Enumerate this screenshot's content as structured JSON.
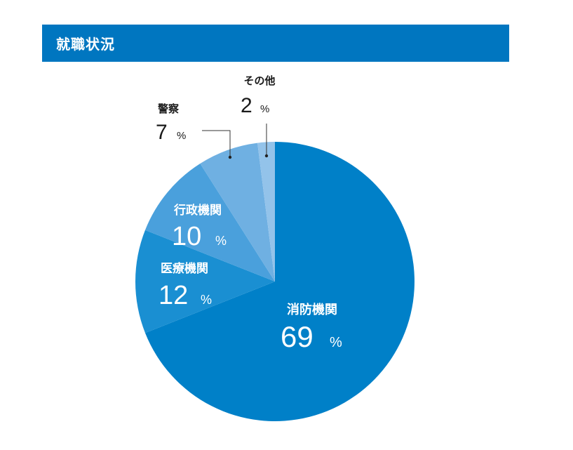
{
  "header": {
    "title": "就職状況"
  },
  "chart_data": {
    "type": "pie",
    "slices": [
      {
        "label": "消防機関",
        "value": 69,
        "unit": "%",
        "color": "#0080c8"
      },
      {
        "label": "医療機関",
        "value": 12,
        "unit": "%",
        "color": "#1a8fd2"
      },
      {
        "label": "行政機関",
        "value": 10,
        "unit": "%",
        "color": "#4aa0dc"
      },
      {
        "label": "警察",
        "value": 7,
        "unit": "%",
        "color": "#6fb0e2"
      },
      {
        "label": "その他",
        "value": 2,
        "unit": "%",
        "color": "#93c3ea"
      }
    ]
  }
}
